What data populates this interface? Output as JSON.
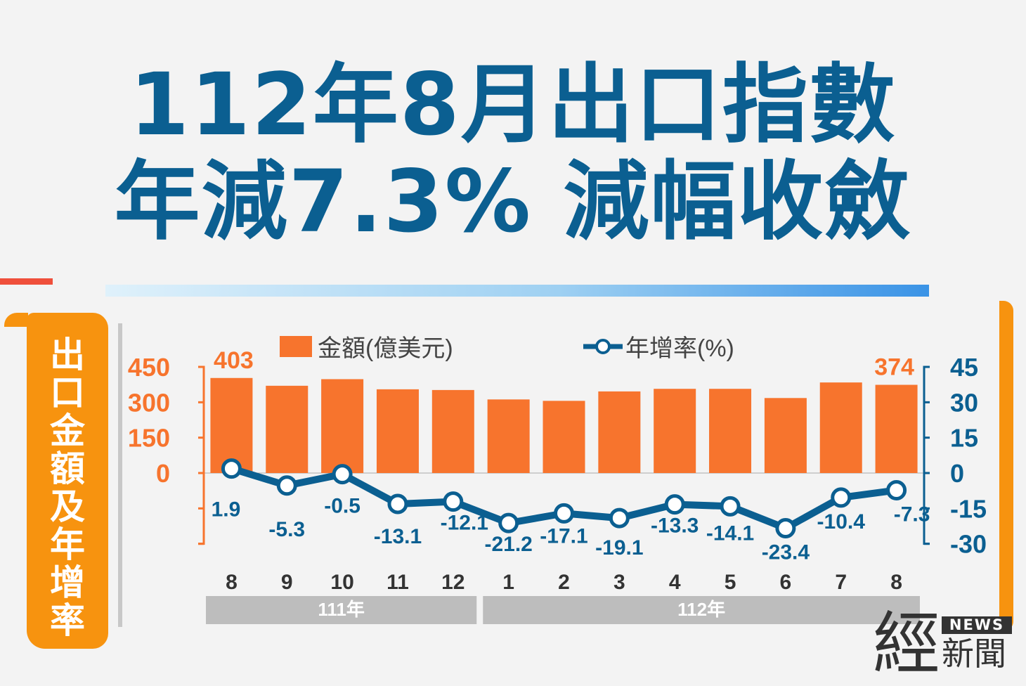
{
  "headline": {
    "line1": "112年8月出口指數",
    "line2": "年減7.3% 減幅收斂"
  },
  "side_label": "出\n口\n金\n額\n及\n年\n增\n率",
  "colors": {
    "bar": "#f7742d",
    "line": "#0b5f91",
    "headline": "#0b5f91",
    "accent": "#f7930f"
  },
  "chart_data": {
    "type": "bar",
    "categories": [
      "8",
      "9",
      "10",
      "11",
      "12",
      "1",
      "2",
      "3",
      "4",
      "5",
      "6",
      "7",
      "8"
    ],
    "year_groups": [
      {
        "label": "111年",
        "span": [
          0,
          4
        ]
      },
      {
        "label": "112年",
        "span": [
          5,
          12
        ]
      }
    ],
    "legend": [
      "金額(億美元)",
      "年增率(%)"
    ],
    "legend_position": "top",
    "series": [
      {
        "name": "金額(億美元)",
        "type": "bar",
        "axis": "left",
        "values": [
          403,
          370,
          398,
          355,
          352,
          312,
          306,
          346,
          357,
          357,
          318,
          384,
          374
        ],
        "value_labels": {
          "0": "403",
          "12": "374"
        }
      },
      {
        "name": "年增率(%)",
        "type": "line",
        "axis": "right",
        "values": [
          1.9,
          -5.3,
          -0.5,
          -13.1,
          -12.1,
          -21.2,
          -17.1,
          -19.1,
          -13.3,
          -14.1,
          -23.4,
          -10.4,
          -7.3
        ],
        "value_labels": [
          "1.9",
          "-5.3",
          "-0.5",
          "-13.1",
          "-12.1",
          "-21.2",
          "-17.1",
          "-19.1",
          "-13.3",
          "-14.1",
          "-23.4",
          "-10.4",
          "-7.3"
        ]
      }
    ],
    "left_axis": {
      "ticks": [
        "450",
        "300",
        "150",
        "0"
      ],
      "range": [
        -300,
        450
      ]
    },
    "right_axis": {
      "ticks": [
        "45",
        "30",
        "15",
        "0",
        "-15",
        "-30"
      ],
      "range": [
        -30,
        45
      ]
    },
    "grid": false
  },
  "logo": {
    "big": "經",
    "badge": "NEWS",
    "small": "新聞"
  }
}
